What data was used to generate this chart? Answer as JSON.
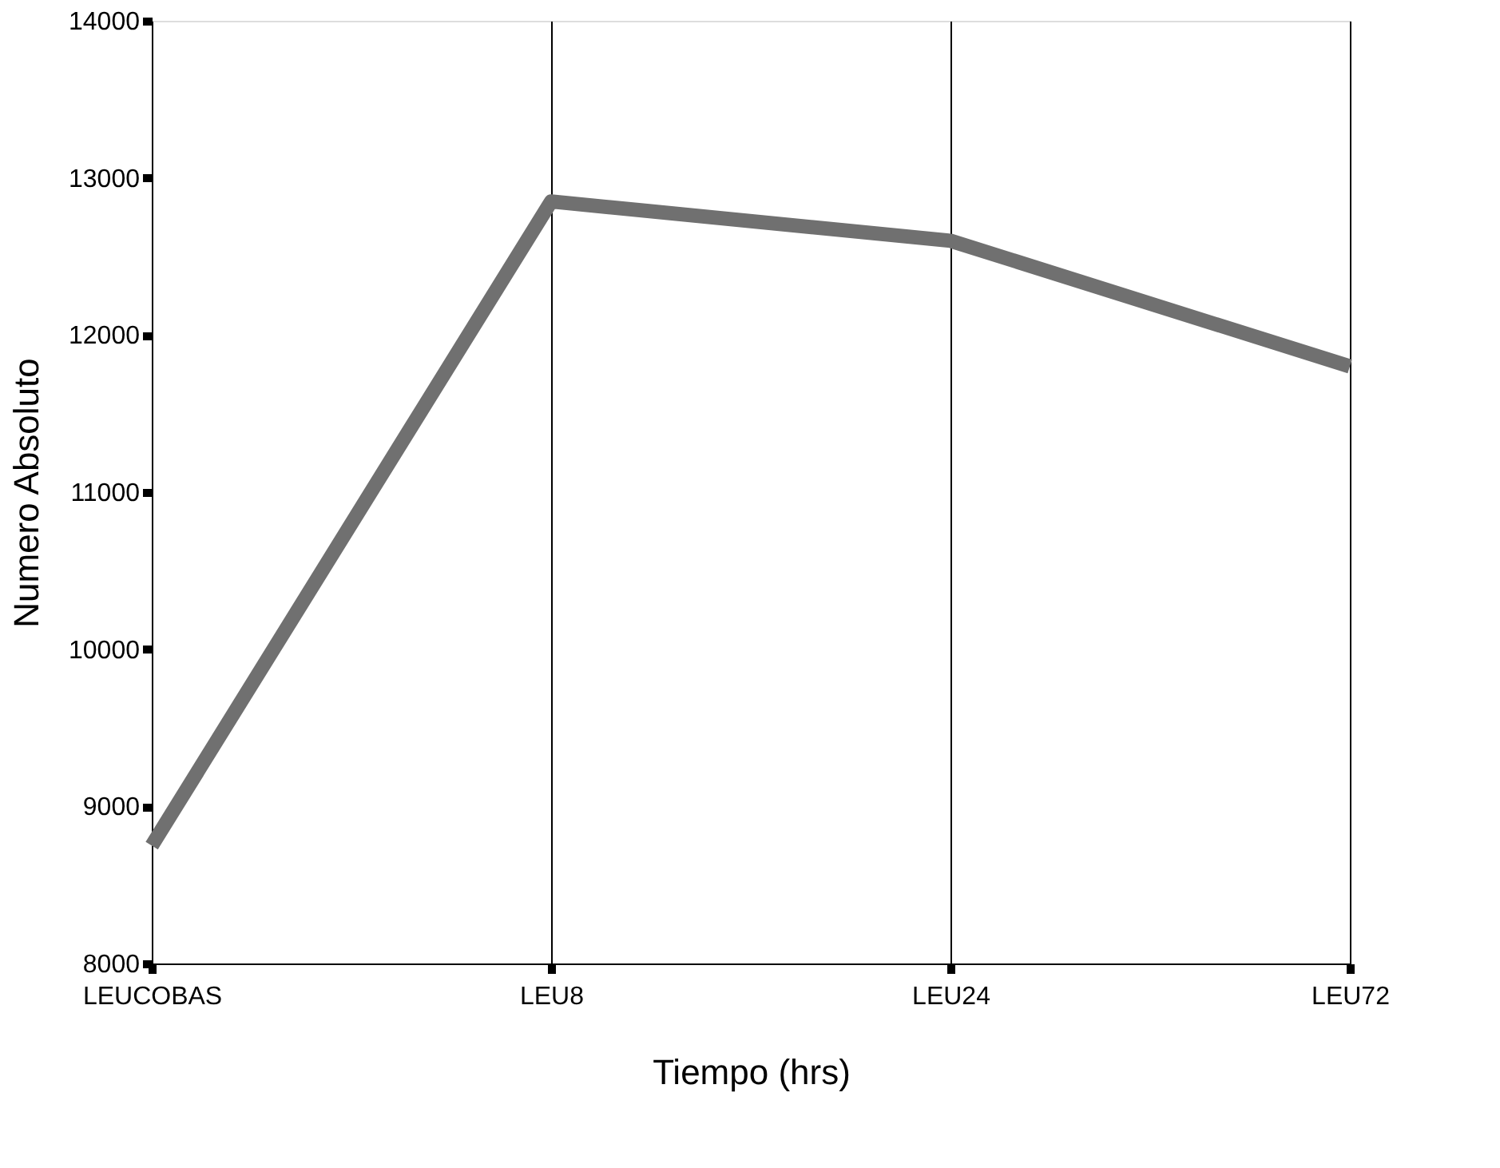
{
  "chart_data": {
    "type": "line",
    "xlabel": "Tiempo  (hrs)",
    "ylabel": "Numero Absoluto",
    "categories": [
      "LEUCOBAS",
      "LEU8",
      "LEU24",
      "LEU72"
    ],
    "series": [
      {
        "color": "#707070",
        "values": [
          8750,
          12850,
          12600,
          11800
        ]
      }
    ],
    "ylim": [
      8000,
      14000
    ],
    "yticks": [
      8000,
      9000,
      10000,
      11000,
      12000,
      13000,
      14000
    ],
    "grid": "x",
    "marker": "none",
    "line_style": "solid"
  }
}
